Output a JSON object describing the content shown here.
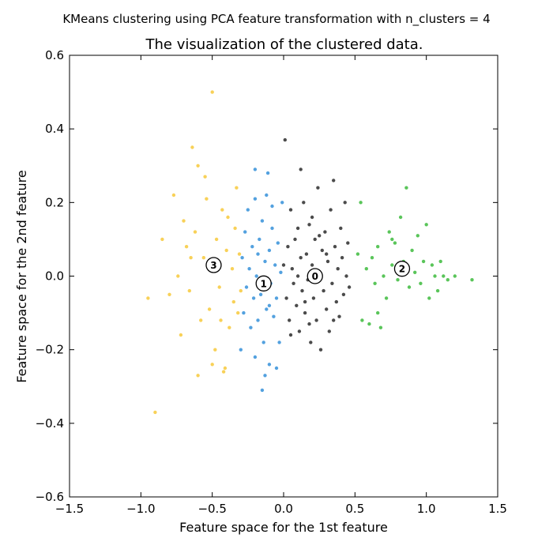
{
  "chart_data": {
    "type": "scatter",
    "suptitle": "KMeans clustering using PCA feature transformation with n_clusters = 4",
    "title": "The visualization of the clustered data.",
    "xlabel": "Feature space for the 1st feature",
    "ylabel": "Feature space for the 2nd feature",
    "xlim": [
      -1.5,
      1.5
    ],
    "ylim": [
      -0.6,
      0.6
    ],
    "xticks": [
      -1.5,
      -1.0,
      -0.5,
      0.0,
      0.5,
      1.0,
      1.5
    ],
    "xtick_labels": [
      "−1.5",
      "−1.0",
      "−0.5",
      "0.0",
      "0.5",
      "1.0",
      "1.5"
    ],
    "yticks": [
      -0.6,
      -0.4,
      -0.2,
      0.0,
      0.2,
      0.4,
      0.6
    ],
    "ytick_labels": [
      "−0.6",
      "−0.4",
      "−0.2",
      "0.0",
      "0.2",
      "0.4",
      "0.6"
    ],
    "grid": false,
    "series": [
      {
        "cluster": 0,
        "color": "#2b2b2b",
        "center": [
          0.22,
          0.0
        ],
        "points": [
          [
            0.0,
            0.03
          ],
          [
            0.01,
            0.37
          ],
          [
            0.02,
            -0.06
          ],
          [
            0.03,
            0.08
          ],
          [
            0.04,
            -0.12
          ],
          [
            0.05,
            0.18
          ],
          [
            0.06,
            0.02
          ],
          [
            0.07,
            -0.02
          ],
          [
            0.08,
            0.1
          ],
          [
            0.09,
            -0.08
          ],
          [
            0.1,
            0.13
          ],
          [
            0.11,
            -0.15
          ],
          [
            0.12,
            0.29
          ],
          [
            0.12,
            0.05
          ],
          [
            0.13,
            -0.04
          ],
          [
            0.14,
            0.2
          ],
          [
            0.15,
            -0.1
          ],
          [
            0.16,
            0.06
          ],
          [
            0.17,
            -0.01
          ],
          [
            0.18,
            0.14
          ],
          [
            0.19,
            -0.18
          ],
          [
            0.2,
            0.03
          ],
          [
            0.21,
            -0.06
          ],
          [
            0.22,
            0.1
          ],
          [
            0.23,
            -0.12
          ],
          [
            0.24,
            0.24
          ],
          [
            0.25,
            0.01
          ],
          [
            0.26,
            -0.2
          ],
          [
            0.27,
            0.07
          ],
          [
            0.28,
            -0.04
          ],
          [
            0.29,
            0.12
          ],
          [
            0.3,
            -0.09
          ],
          [
            0.31,
            0.04
          ],
          [
            0.32,
            -0.15
          ],
          [
            0.33,
            0.18
          ],
          [
            0.34,
            -0.02
          ],
          [
            0.35,
            0.26
          ],
          [
            0.36,
            0.08
          ],
          [
            0.37,
            -0.07
          ],
          [
            0.38,
            0.02
          ],
          [
            0.39,
            -0.11
          ],
          [
            0.4,
            0.13
          ],
          [
            0.41,
            0.05
          ],
          [
            0.42,
            -0.05
          ],
          [
            0.43,
            0.2
          ],
          [
            0.44,
            0.0
          ],
          [
            0.45,
            0.09
          ],
          [
            0.46,
            -0.03
          ],
          [
            0.05,
            -0.16
          ],
          [
            0.15,
            -0.07
          ],
          [
            0.2,
            0.16
          ],
          [
            0.25,
            0.11
          ],
          [
            0.3,
            0.06
          ],
          [
            0.35,
            -0.12
          ],
          [
            0.1,
            0.0
          ],
          [
            0.18,
            -0.13
          ]
        ]
      },
      {
        "cluster": 1,
        "color": "#3591d9",
        "center": [
          -0.14,
          -0.02
        ],
        "points": [
          [
            -0.3,
            -0.2
          ],
          [
            -0.29,
            0.05
          ],
          [
            -0.28,
            -0.1
          ],
          [
            -0.27,
            0.12
          ],
          [
            -0.26,
            -0.03
          ],
          [
            -0.25,
            0.18
          ],
          [
            -0.24,
            0.02
          ],
          [
            -0.23,
            -0.14
          ],
          [
            -0.22,
            0.08
          ],
          [
            -0.21,
            -0.06
          ],
          [
            -0.2,
            0.21
          ],
          [
            -0.19,
            0.0
          ],
          [
            -0.18,
            -0.12
          ],
          [
            -0.2,
            0.29
          ],
          [
            -0.17,
            0.1
          ],
          [
            -0.16,
            -0.05
          ],
          [
            -0.15,
            0.15
          ],
          [
            -0.14,
            -0.18
          ],
          [
            -0.13,
            0.04
          ],
          [
            -0.12,
            -0.09
          ],
          [
            -0.11,
            0.28
          ],
          [
            -0.1,
            0.07
          ],
          [
            -0.09,
            -0.02
          ],
          [
            -0.08,
            0.13
          ],
          [
            -0.07,
            -0.11
          ],
          [
            -0.06,
            0.03
          ],
          [
            -0.05,
            -0.06
          ],
          [
            -0.04,
            0.09
          ],
          [
            -0.03,
            -0.18
          ],
          [
            -0.02,
            0.01
          ],
          [
            -0.01,
            0.2
          ],
          [
            -0.15,
            -0.31
          ],
          [
            -0.13,
            -0.27
          ],
          [
            -0.1,
            -0.24
          ],
          [
            -0.05,
            -0.25
          ],
          [
            -0.2,
            -0.22
          ],
          [
            -0.12,
            0.22
          ],
          [
            -0.08,
            0.19
          ],
          [
            -0.18,
            0.06
          ],
          [
            -0.1,
            -0.08
          ]
        ]
      },
      {
        "cluster": 2,
        "color": "#3dbb3d",
        "center": [
          0.83,
          0.02
        ],
        "points": [
          [
            0.52,
            0.06
          ],
          [
            0.54,
            0.2
          ],
          [
            0.55,
            -0.12
          ],
          [
            0.58,
            0.02
          ],
          [
            0.6,
            -0.13
          ],
          [
            0.62,
            0.05
          ],
          [
            0.64,
            -0.02
          ],
          [
            0.66,
            0.08
          ],
          [
            0.68,
            -0.14
          ],
          [
            0.7,
            0.0
          ],
          [
            0.72,
            -0.06
          ],
          [
            0.74,
            0.12
          ],
          [
            0.76,
            0.03
          ],
          [
            0.78,
            0.09
          ],
          [
            0.8,
            -0.01
          ],
          [
            0.82,
            0.16
          ],
          [
            0.84,
            0.04
          ],
          [
            0.86,
            0.24
          ],
          [
            0.88,
            -0.03
          ],
          [
            0.9,
            0.07
          ],
          [
            0.92,
            0.01
          ],
          [
            0.94,
            0.11
          ],
          [
            0.96,
            -0.02
          ],
          [
            0.98,
            0.04
          ],
          [
            1.0,
            0.14
          ],
          [
            1.02,
            -0.06
          ],
          [
            1.04,
            0.03
          ],
          [
            1.06,
            0.0
          ],
          [
            1.08,
            -0.04
          ],
          [
            1.1,
            0.04
          ],
          [
            1.12,
            0.0
          ],
          [
            1.15,
            -0.01
          ],
          [
            1.2,
            0.0
          ],
          [
            1.32,
            -0.01
          ],
          [
            0.66,
            -0.1
          ],
          [
            0.76,
            0.1
          ]
        ]
      },
      {
        "cluster": 3,
        "color": "#f7c93b",
        "center": [
          -0.49,
          0.03
        ],
        "points": [
          [
            -0.95,
            -0.06
          ],
          [
            -0.9,
            -0.37
          ],
          [
            -0.85,
            0.1
          ],
          [
            -0.8,
            -0.05
          ],
          [
            -0.77,
            0.22
          ],
          [
            -0.74,
            0.0
          ],
          [
            -0.72,
            -0.16
          ],
          [
            -0.7,
            0.15
          ],
          [
            -0.68,
            0.08
          ],
          [
            -0.66,
            -0.04
          ],
          [
            -0.64,
            0.35
          ],
          [
            -0.62,
            0.12
          ],
          [
            -0.6,
            0.3
          ],
          [
            -0.58,
            -0.12
          ],
          [
            -0.56,
            0.05
          ],
          [
            -0.54,
            0.21
          ],
          [
            -0.52,
            -0.09
          ],
          [
            -0.5,
            0.5
          ],
          [
            -0.48,
            -0.2
          ],
          [
            -0.47,
            0.1
          ],
          [
            -0.45,
            -0.03
          ],
          [
            -0.43,
            0.18
          ],
          [
            -0.41,
            -0.25
          ],
          [
            -0.4,
            0.07
          ],
          [
            -0.38,
            -0.14
          ],
          [
            -0.36,
            0.02
          ],
          [
            -0.35,
            -0.07
          ],
          [
            -0.34,
            0.13
          ],
          [
            -0.33,
            0.24
          ],
          [
            -0.32,
            -0.1
          ],
          [
            -0.31,
            0.06
          ],
          [
            -0.3,
            -0.04
          ],
          [
            -0.6,
            -0.27
          ],
          [
            -0.5,
            -0.24
          ],
          [
            -0.42,
            -0.26
          ],
          [
            -0.55,
            0.27
          ],
          [
            -0.65,
            0.05
          ],
          [
            -0.46,
            0.04
          ],
          [
            -0.44,
            -0.12
          ],
          [
            -0.39,
            0.16
          ]
        ]
      }
    ]
  }
}
